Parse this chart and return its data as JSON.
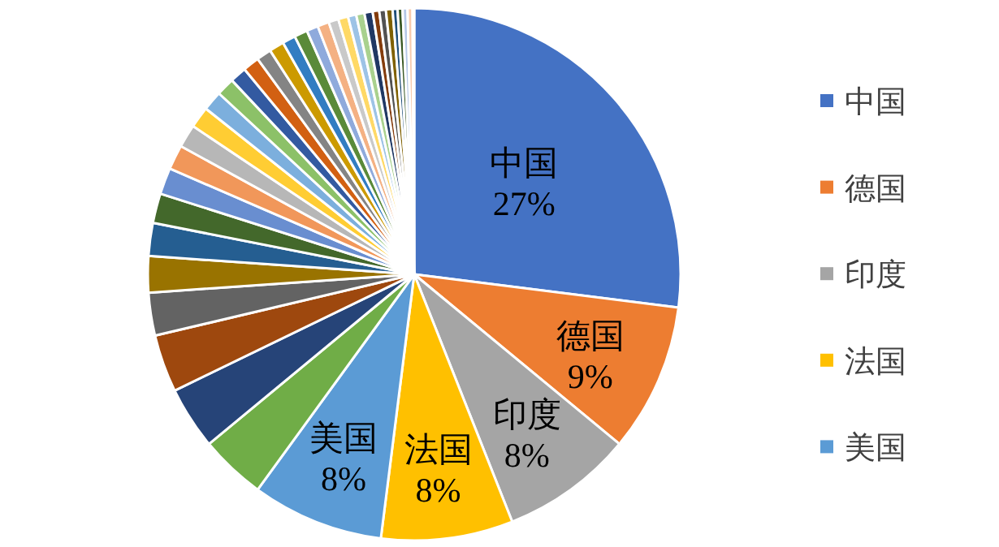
{
  "chart_data": {
    "type": "pie",
    "categories": [
      "中国",
      "德国",
      "印度",
      "法国",
      "美国",
      null,
      null,
      null,
      null,
      null,
      null,
      null,
      null,
      null,
      null,
      null,
      null,
      null,
      null,
      null,
      null,
      null,
      null,
      null,
      null,
      null,
      null,
      null,
      null,
      null,
      null,
      null,
      null,
      null,
      null,
      null,
      null,
      null,
      null
    ],
    "values": [
      27,
      9,
      8,
      8,
      8,
      4,
      3.8,
      3.5,
      2.6,
      2.2,
      2.0,
      1.8,
      1.6,
      1.5,
      1.4,
      1.3,
      1.2,
      1.1,
      1.0,
      1.0,
      0.9,
      0.9,
      0.8,
      0.8,
      0.7,
      0.7,
      0.6,
      0.6,
      0.5,
      0.5,
      0.5,
      0.4,
      0.4,
      0.4,
      0.3,
      0.3,
      0.3,
      0.3,
      0.1
    ],
    "value_labels": [
      "27%",
      "9%",
      "8%",
      "8%",
      "8%",
      null,
      null,
      null,
      null,
      null,
      null,
      null,
      null,
      null,
      null,
      null,
      null,
      null,
      null,
      null,
      null,
      null,
      null,
      null,
      null,
      null,
      null,
      null,
      null,
      null,
      null,
      null,
      null,
      null,
      null,
      null,
      null,
      null,
      null
    ],
    "colors": [
      "#4472c4",
      "#ed7d31",
      "#a5a5a5",
      "#ffc000",
      "#5b9bd5",
      "#70ad47",
      "#264478",
      "#9e480e",
      "#636363",
      "#997300",
      "#255e91",
      "#43682b",
      "#698ed0",
      "#f1975a",
      "#b7b7b7",
      "#ffcd33",
      "#7cafdd",
      "#8cc168",
      "#335aa1",
      "#d26012",
      "#848484",
      "#cc9a00",
      "#327dc2",
      "#5a8a39",
      "#8faadc",
      "#f4b183",
      "#c9c9c9",
      "#ffd966",
      "#9dc3e6",
      "#a9d18e",
      "#203864",
      "#843c0c",
      "#525252",
      "#7f6000",
      "#1f4e79",
      "#385723",
      "#b4c7e7",
      "#f8cbad",
      "#dbdbdb"
    ],
    "legend": "right"
  }
}
